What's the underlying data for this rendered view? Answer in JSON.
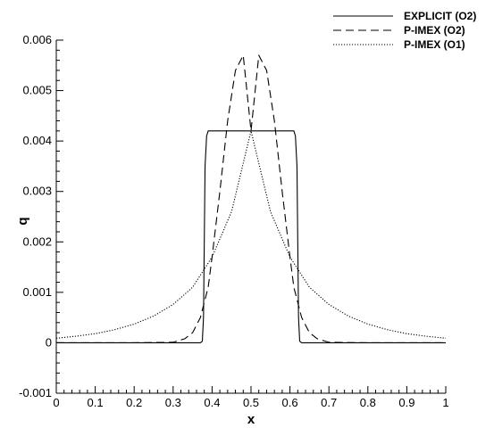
{
  "chart_data": {
    "type": "line",
    "xlabel": "x",
    "ylabel": "q",
    "xlim": [
      0,
      1
    ],
    "ylim": [
      -0.001,
      0.006
    ],
    "x_ticks": [
      0,
      0.1,
      0.2,
      0.3,
      0.4,
      0.5,
      0.6,
      0.7,
      0.8,
      0.9,
      1
    ],
    "x_tick_labels": [
      "0",
      "0.1",
      "0.2",
      "0.3",
      "0.4",
      "0.5",
      "0.6",
      "0.7",
      "0.8",
      "0.9",
      "1"
    ],
    "y_ticks": [
      -0.001,
      0,
      0.001,
      0.002,
      0.003,
      0.004,
      0.005,
      0.006
    ],
    "y_tick_labels": [
      "-0.001",
      "0",
      "0.001",
      "0.002",
      "0.003",
      "0.004",
      "0.005",
      "0.006"
    ],
    "grid": false,
    "legend_position": "top-right, outside plot",
    "series": [
      {
        "name": "EXPLICIT (O2)",
        "style": "solid",
        "x": [
          0,
          0.1,
          0.2,
          0.3,
          0.37,
          0.375,
          0.378,
          0.38,
          0.382,
          0.386,
          0.39,
          0.5,
          0.61,
          0.614,
          0.618,
          0.62,
          0.622,
          0.625,
          0.63,
          0.7,
          0.8,
          0.9,
          1
        ],
        "y": [
          0,
          0,
          0,
          0,
          0,
          3e-05,
          0.0005,
          0.002,
          0.0035,
          0.0041,
          0.0042,
          0.0042,
          0.0042,
          0.0041,
          0.0035,
          0.002,
          0.0005,
          3e-05,
          0,
          0,
          0,
          0,
          0
        ]
      },
      {
        "name": "P-IMEX (O2)",
        "style": "dashed",
        "x": [
          0,
          0.2,
          0.3,
          0.33,
          0.35,
          0.37,
          0.39,
          0.4,
          0.42,
          0.44,
          0.46,
          0.48,
          0.5,
          0.52,
          0.54,
          0.56,
          0.58,
          0.6,
          0.61,
          0.63,
          0.65,
          0.67,
          0.7,
          0.8,
          1
        ],
        "y": [
          0,
          0,
          1e-05,
          8e-05,
          0.0002,
          0.0005,
          0.0011,
          0.0017,
          0.003,
          0.0044,
          0.0054,
          0.0057,
          0.0042,
          0.0057,
          0.0054,
          0.0044,
          0.003,
          0.0017,
          0.0011,
          0.0005,
          0.0002,
          8e-05,
          1e-05,
          0,
          0
        ]
      },
      {
        "name": "P-IMEX (O1)",
        "style": "dotted",
        "x": [
          0,
          0.05,
          0.1,
          0.15,
          0.2,
          0.25,
          0.3,
          0.35,
          0.4,
          0.45,
          0.5,
          0.55,
          0.6,
          0.65,
          0.7,
          0.75,
          0.8,
          0.85,
          0.9,
          0.95,
          1
        ],
        "y": [
          9e-05,
          0.00013,
          0.00018,
          0.00026,
          0.00037,
          0.00053,
          0.00076,
          0.0011,
          0.0017,
          0.0026,
          0.0042,
          0.0026,
          0.0017,
          0.0011,
          0.00076,
          0.00053,
          0.00037,
          0.00026,
          0.00018,
          0.00013,
          9e-05
        ]
      }
    ]
  }
}
